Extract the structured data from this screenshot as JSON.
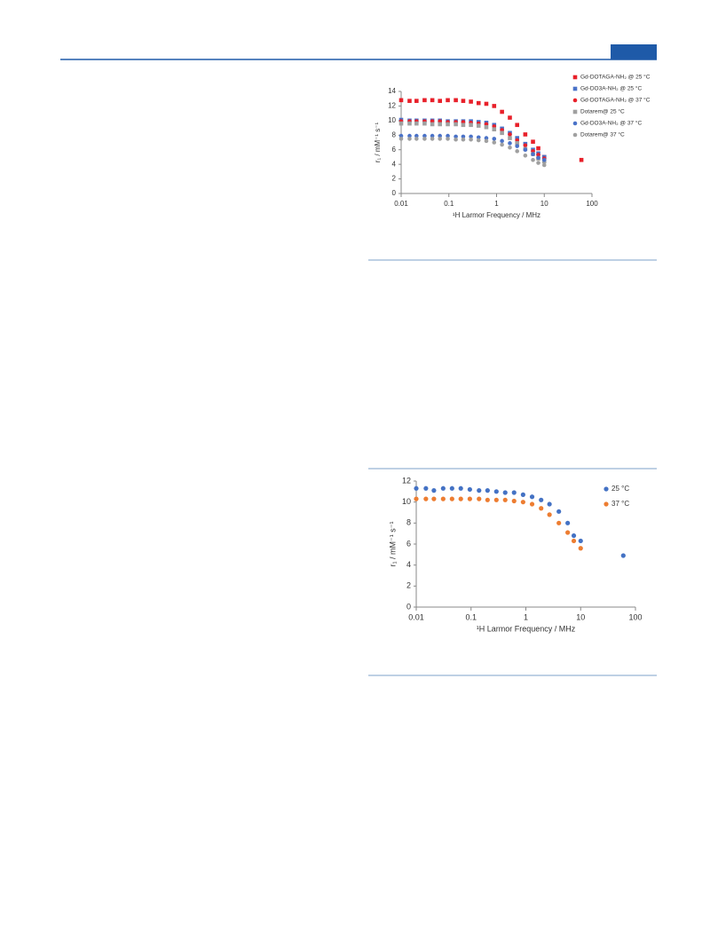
{
  "chart_data": [
    {
      "type": "scatter",
      "xlog": true,
      "x_label": "¹H Larmor Frequency / MHz",
      "y_label": "r₁ / mM⁻¹ s⁻¹",
      "x": [
        0.01,
        0.015,
        0.021,
        0.031,
        0.045,
        0.065,
        0.095,
        0.14,
        0.2,
        0.29,
        0.42,
        0.61,
        0.89,
        1.3,
        1.9,
        2.7,
        4,
        5.8,
        7.5,
        10,
        60
      ],
      "xlim": [
        0.01,
        100
      ],
      "xticks": [
        0.01,
        0.1,
        1,
        10,
        100
      ],
      "ylim": [
        0,
        14
      ],
      "yticks": [
        0,
        2,
        4,
        6,
        8,
        10,
        12,
        14
      ],
      "legend": "right",
      "series": [
        {
          "name": "Gd-DOTAGA-NH₂ @ 25 °C",
          "color": "#e8202a",
          "marker": "square",
          "values": [
            12.8,
            12.7,
            12.7,
            12.8,
            12.8,
            12.7,
            12.8,
            12.8,
            12.7,
            12.6,
            12.4,
            12.3,
            12.0,
            11.2,
            10.4,
            9.4,
            8.1,
            7.1,
            6.2,
            5.0,
            4.6
          ]
        },
        {
          "name": "Gd-DO3A-NH₂ @ 25 °C",
          "color": "#4a72c8",
          "marker": "square",
          "values": [
            10.1,
            10.0,
            10.0,
            10.0,
            10.0,
            10.0,
            9.9,
            9.9,
            9.9,
            9.9,
            9.8,
            9.7,
            9.4,
            8.9,
            8.3,
            7.6,
            6.8,
            6.0,
            5.5,
            5.0,
            null
          ]
        },
        {
          "name": "Gd-DOTAGA-NH₂ @ 37 °C",
          "color": "#e8202a",
          "marker": "circle",
          "values": [
            9.9,
            9.9,
            9.9,
            9.9,
            9.9,
            9.9,
            9.8,
            9.8,
            9.8,
            9.7,
            9.6,
            9.5,
            9.2,
            8.7,
            8.1,
            7.3,
            6.6,
            5.8,
            5.3,
            4.8,
            null
          ]
        },
        {
          "name": "Dotarem@ 25 °C",
          "color": "#a0a0a0",
          "marker": "square",
          "values": [
            9.6,
            9.6,
            9.6,
            9.6,
            9.5,
            9.5,
            9.5,
            9.5,
            9.4,
            9.4,
            9.3,
            9.1,
            8.8,
            8.3,
            7.6,
            6.9,
            6.1,
            5.4,
            4.8,
            4.4,
            null
          ]
        },
        {
          "name": "Gd-DO3A-NH₂ @ 37 °C",
          "color": "#4a72c8",
          "marker": "circle",
          "values": [
            7.9,
            7.9,
            7.9,
            7.9,
            7.9,
            7.9,
            7.9,
            7.8,
            7.8,
            7.8,
            7.7,
            7.6,
            7.5,
            7.2,
            6.9,
            6.5,
            6.0,
            5.4,
            4.9,
            4.6,
            null
          ]
        },
        {
          "name": "Dotarem@ 37 °C",
          "color": "#a0a0a0",
          "marker": "circle",
          "values": [
            7.5,
            7.5,
            7.5,
            7.5,
            7.5,
            7.5,
            7.5,
            7.4,
            7.4,
            7.4,
            7.3,
            7.2,
            7.0,
            6.7,
            6.3,
            5.8,
            5.2,
            4.6,
            4.2,
            3.9,
            null
          ]
        }
      ]
    },
    {
      "type": "scatter",
      "xlog": true,
      "x_label": "¹H Larmor Frequency / MHz",
      "y_label": "r₁ / mM⁻¹ s⁻¹",
      "x": [
        0.01,
        0.015,
        0.021,
        0.031,
        0.045,
        0.065,
        0.095,
        0.14,
        0.2,
        0.29,
        0.42,
        0.61,
        0.89,
        1.3,
        1.9,
        2.7,
        4,
        5.8,
        7.5,
        10,
        60
      ],
      "xlim": [
        0.01,
        100
      ],
      "xticks": [
        0.01,
        0.1,
        1,
        10,
        100
      ],
      "ylim": [
        0,
        12
      ],
      "yticks": [
        0,
        2,
        4,
        6,
        8,
        10,
        12
      ],
      "legend": "right",
      "series": [
        {
          "name": "25 °C",
          "color": "#4472c4",
          "marker": "circle",
          "values": [
            11.3,
            11.3,
            11.1,
            11.3,
            11.3,
            11.3,
            11.2,
            11.1,
            11.1,
            11.0,
            10.9,
            10.9,
            10.7,
            10.5,
            10.2,
            9.8,
            9.1,
            8.0,
            6.8,
            6.3,
            4.9
          ]
        },
        {
          "name": "37 °C",
          "color": "#ed7d31",
          "marker": "circle",
          "values": [
            10.3,
            10.3,
            10.3,
            10.3,
            10.3,
            10.3,
            10.3,
            10.3,
            10.2,
            10.2,
            10.2,
            10.1,
            10.0,
            9.8,
            9.4,
            8.8,
            8.0,
            7.1,
            6.3,
            5.6,
            null
          ]
        }
      ]
    }
  ]
}
